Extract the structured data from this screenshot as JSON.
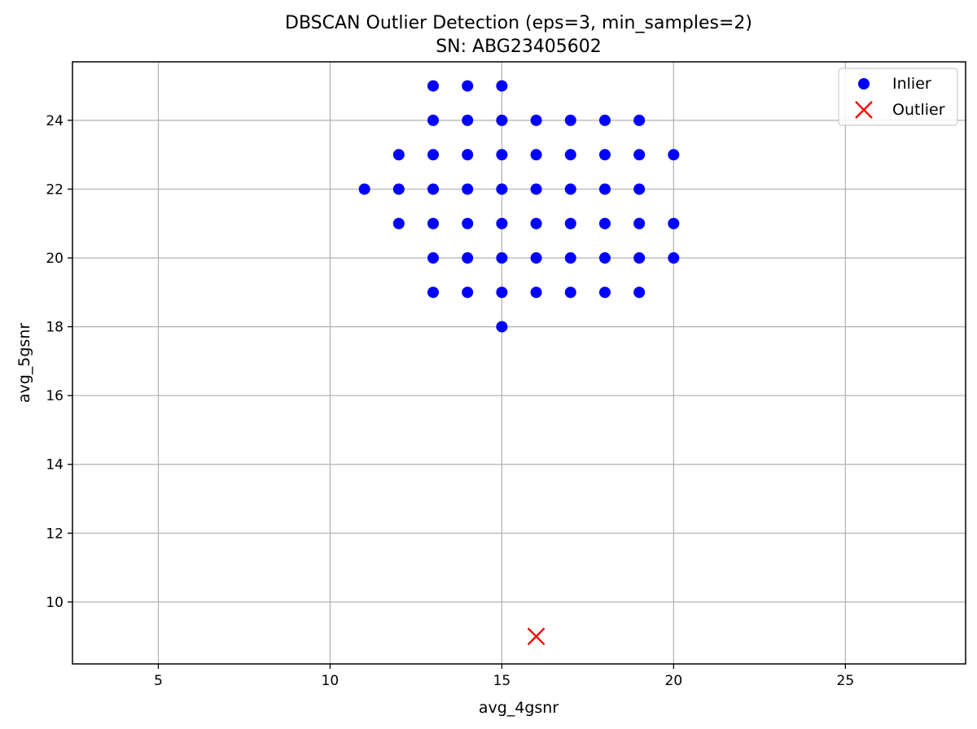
{
  "chart_data": {
    "type": "scatter",
    "title": "DBSCAN Outlier Detection (eps=3, min_samples=2)",
    "subtitle": "SN: ABG23405602",
    "xlabel": "avg_4gsnr",
    "ylabel": "avg_5gsnr",
    "xlim": [
      2.5,
      28.5
    ],
    "ylim": [
      8.2,
      25.7
    ],
    "xticks": [
      5,
      10,
      15,
      20,
      25
    ],
    "yticks": [
      10,
      12,
      14,
      16,
      18,
      20,
      22,
      24
    ],
    "grid": true,
    "legend_position": "top-right",
    "series": [
      {
        "name": "Inlier",
        "marker": "circle",
        "color": "#0000ff",
        "points": [
          [
            13,
            25
          ],
          [
            14,
            25
          ],
          [
            15,
            25
          ],
          [
            13,
            24
          ],
          [
            14,
            24
          ],
          [
            15,
            24
          ],
          [
            16,
            24
          ],
          [
            17,
            24
          ],
          [
            18,
            24
          ],
          [
            19,
            24
          ],
          [
            12,
            23
          ],
          [
            13,
            23
          ],
          [
            14,
            23
          ],
          [
            15,
            23
          ],
          [
            16,
            23
          ],
          [
            17,
            23
          ],
          [
            18,
            23
          ],
          [
            19,
            23
          ],
          [
            20,
            23
          ],
          [
            11,
            22
          ],
          [
            12,
            22
          ],
          [
            13,
            22
          ],
          [
            14,
            22
          ],
          [
            15,
            22
          ],
          [
            16,
            22
          ],
          [
            17,
            22
          ],
          [
            18,
            22
          ],
          [
            19,
            22
          ],
          [
            12,
            21
          ],
          [
            13,
            21
          ],
          [
            14,
            21
          ],
          [
            15,
            21
          ],
          [
            16,
            21
          ],
          [
            17,
            21
          ],
          [
            18,
            21
          ],
          [
            19,
            21
          ],
          [
            20,
            21
          ],
          [
            13,
            20
          ],
          [
            14,
            20
          ],
          [
            15,
            20
          ],
          [
            16,
            20
          ],
          [
            17,
            20
          ],
          [
            18,
            20
          ],
          [
            19,
            20
          ],
          [
            20,
            20
          ],
          [
            13,
            19
          ],
          [
            14,
            19
          ],
          [
            15,
            19
          ],
          [
            16,
            19
          ],
          [
            17,
            19
          ],
          [
            18,
            19
          ],
          [
            19,
            19
          ],
          [
            15,
            18
          ]
        ]
      },
      {
        "name": "Outlier",
        "marker": "x",
        "color": "#ff0000",
        "points": [
          [
            16,
            9
          ]
        ]
      }
    ]
  }
}
